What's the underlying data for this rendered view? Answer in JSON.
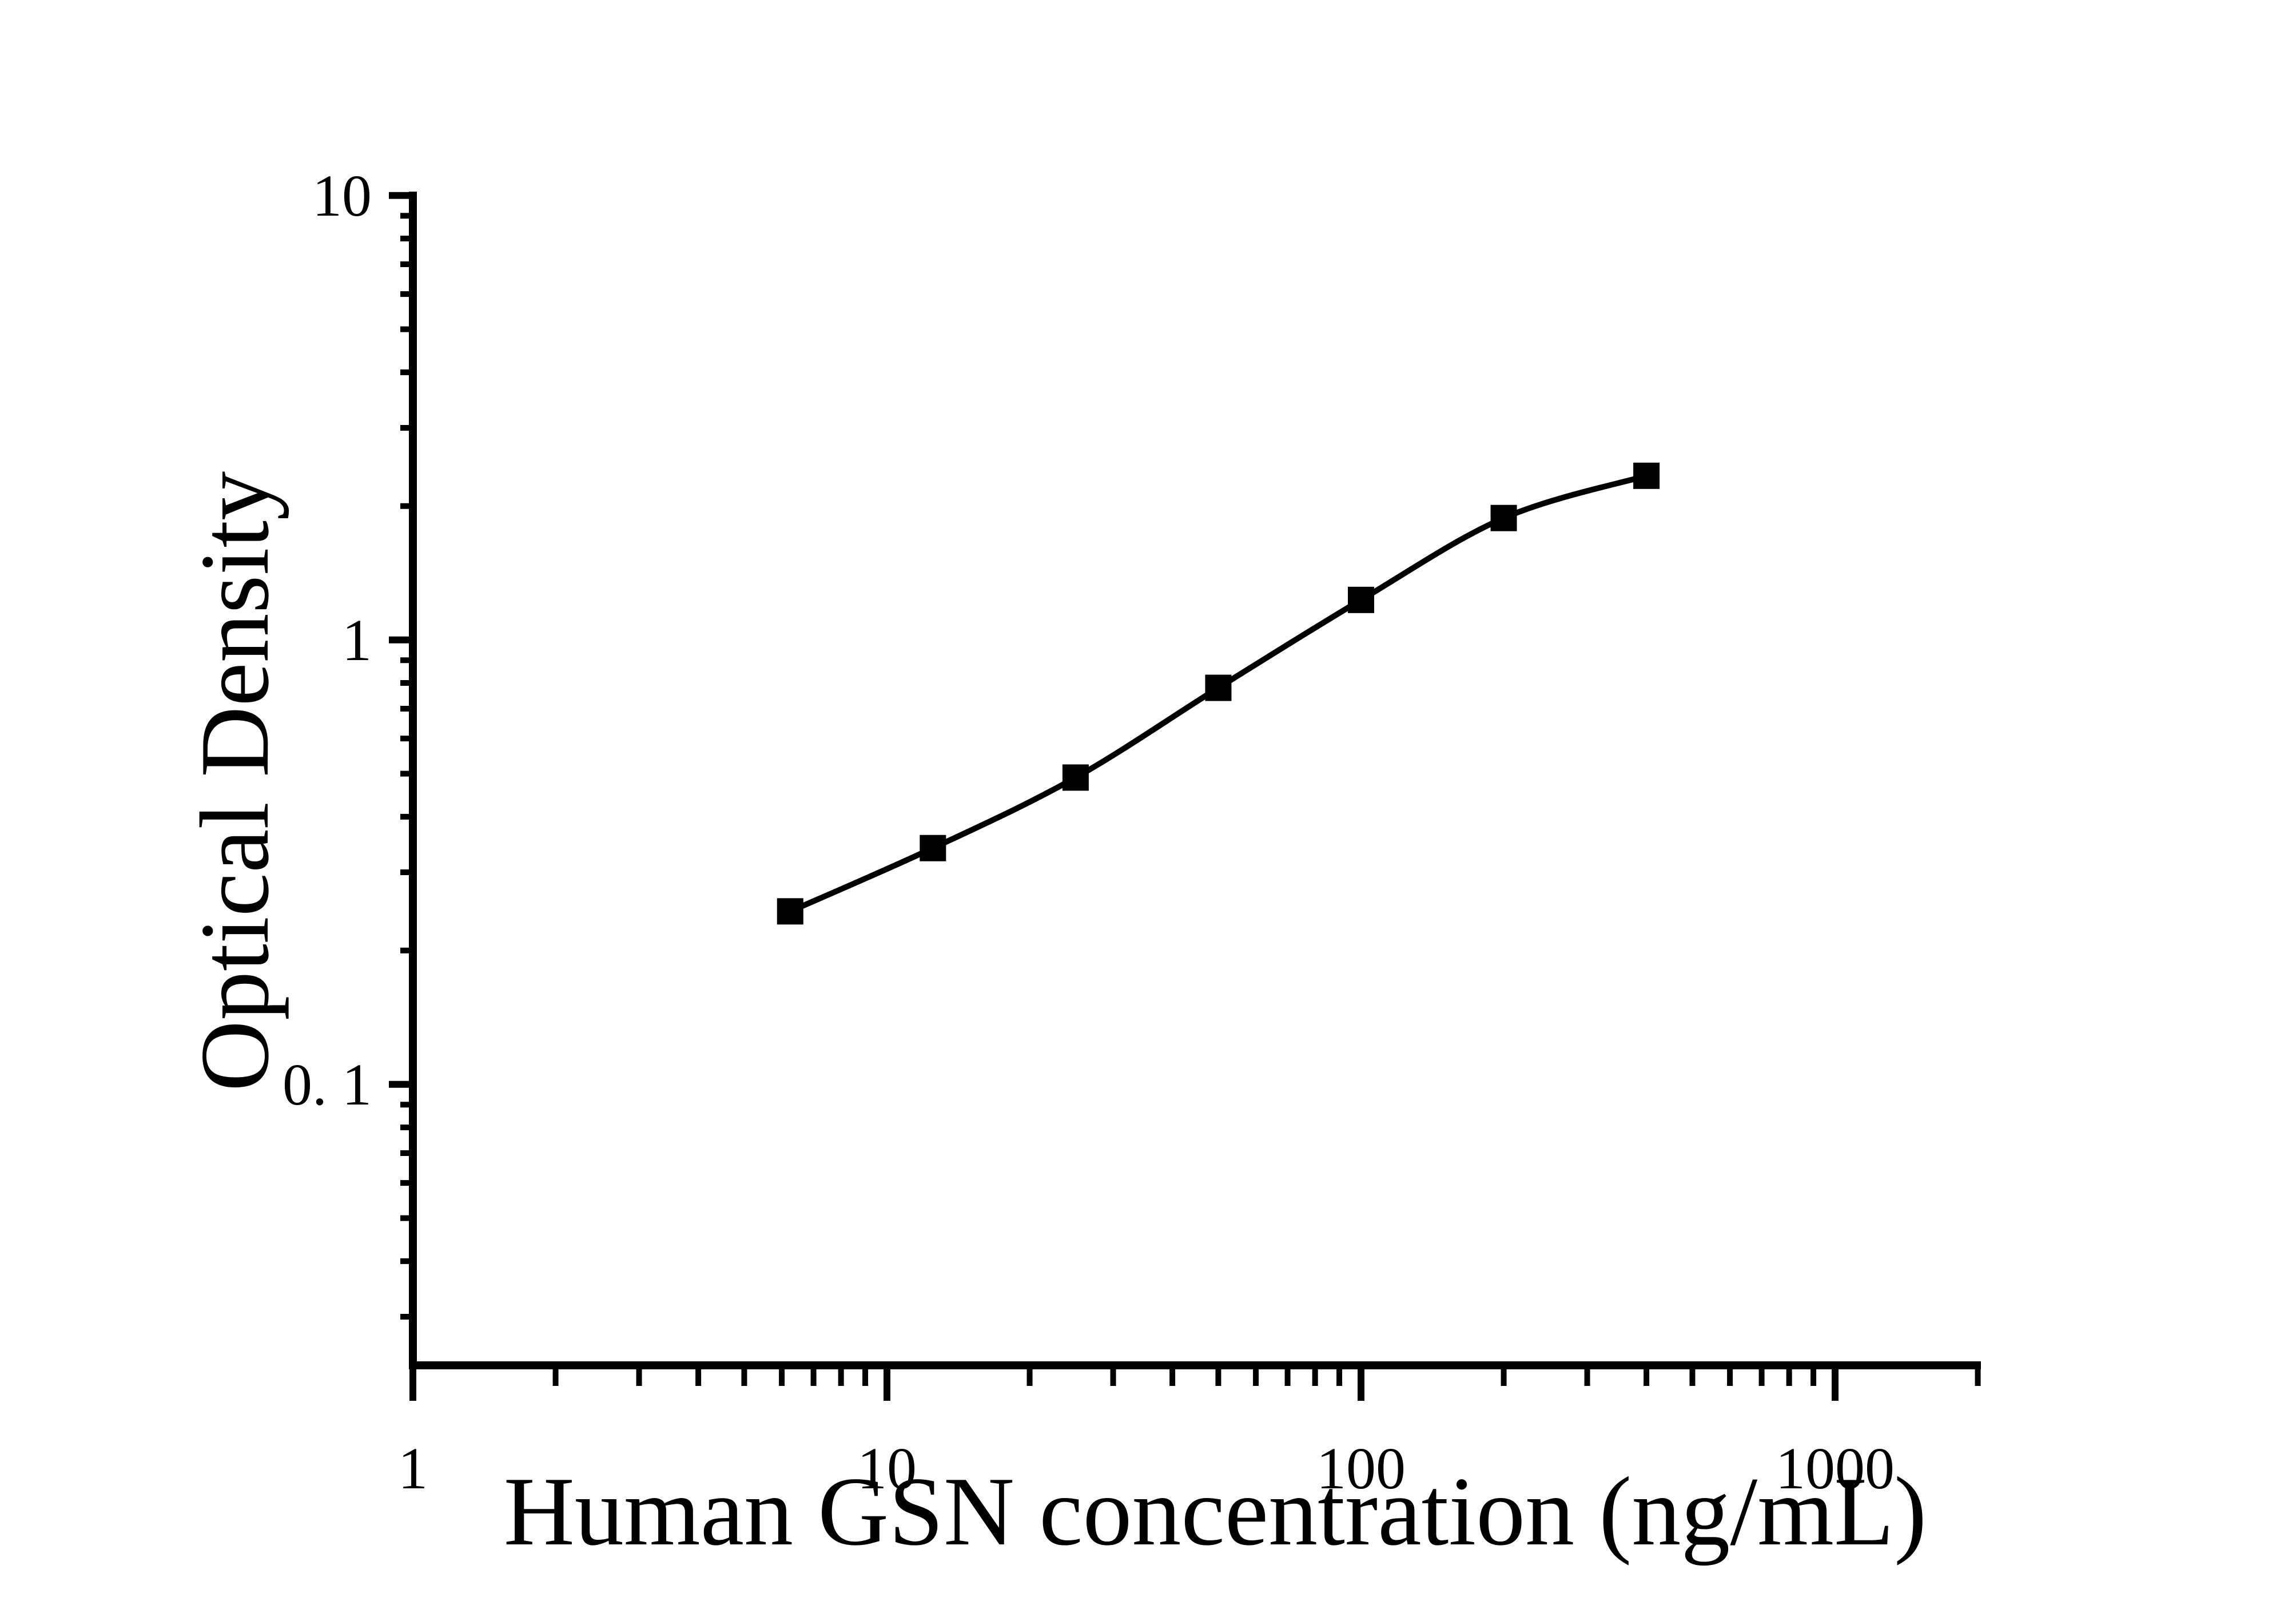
{
  "figure": {
    "background_color": "#ffffff",
    "ink_color": "#000000"
  },
  "chart_data": {
    "type": "scatter",
    "subtype": "standard-curve-with-fit-line",
    "title": "",
    "xlabel": "Human GSN concentration (ng/mL)",
    "ylabel": "Optical Density",
    "x_scale": "log",
    "y_scale": "log",
    "x": [
      6.25,
      12.5,
      25,
      50,
      100,
      200,
      400
    ],
    "y": [
      0.245,
      0.34,
      0.49,
      0.78,
      1.23,
      1.88,
      2.34
    ],
    "series": [
      {
        "name": "standard-curve",
        "marker": "filled-square",
        "line": "smooth-fit"
      }
    ],
    "x_axis": {
      "min": 1,
      "max": 2000,
      "major_ticks": [
        1,
        10,
        100,
        1000
      ],
      "tick_labels": [
        "1",
        "10",
        "100",
        "1000"
      ],
      "minor_ticks": "log decades 2-9"
    },
    "y_axis": {
      "min": 0.023,
      "max": 10,
      "major_ticks": [
        10,
        1,
        0.1
      ],
      "tick_labels": [
        "10",
        "1",
        "0. 1"
      ],
      "minor_ticks": "log decades 2-9"
    },
    "grid": "off",
    "legend": "none",
    "marker_color": "#000000",
    "line_color": "#000000"
  }
}
